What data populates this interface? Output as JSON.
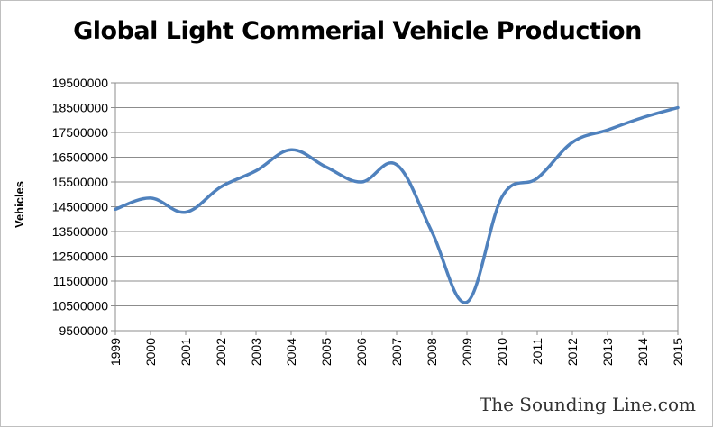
{
  "chart_data": {
    "type": "line",
    "title": "Global Light Commerial Vehicle Production",
    "xlabel": "",
    "ylabel": "Vehicles",
    "x": [
      "1999",
      "2000",
      "2001",
      "2002",
      "2003",
      "2004",
      "2005",
      "2006",
      "2007",
      "2008",
      "2009",
      "2010",
      "2011",
      "2012",
      "2013",
      "2014",
      "2015"
    ],
    "series": [
      {
        "values": [
          14400000,
          14850000,
          14280000,
          15300000,
          15950000,
          16800000,
          16100000,
          15500000,
          16200000,
          13500000,
          10650000,
          14900000,
          15650000,
          17100000,
          17600000,
          18100000,
          18500000
        ]
      }
    ],
    "ylim": [
      9500000,
      19500000
    ],
    "yticks": [
      "19500000",
      "18500000",
      "17500000",
      "16500000",
      "15500000",
      "14500000",
      "13500000",
      "12500000",
      "11500000",
      "10500000",
      "9500000"
    ],
    "grid": true,
    "line_color": "#4f81bd"
  },
  "watermark": "The Sounding Line.com"
}
